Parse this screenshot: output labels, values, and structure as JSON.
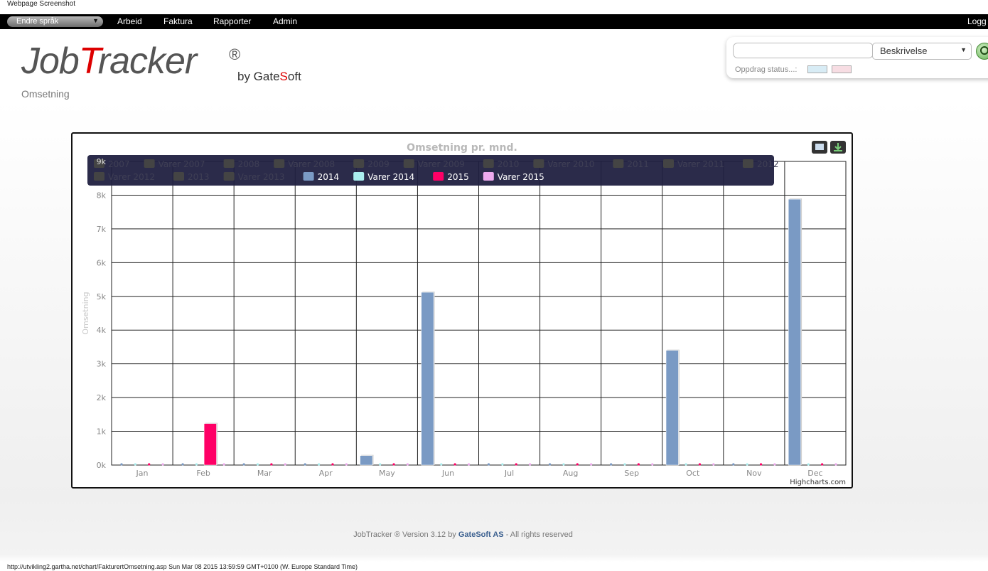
{
  "page": {
    "caption": "Webpage Screenshot",
    "status_url": "http://utvikling2.gartha.net/chart/FakturertOmsetning.asp Sun Mar 08 2015 13:59:59 GMT+0100 (W. Europe Standard Time)"
  },
  "nav": {
    "language": "Endre språk",
    "items": [
      "Arbeid",
      "Faktura",
      "Rapporter",
      "Admin"
    ],
    "logout": "Logg ut"
  },
  "logo": {
    "part1": "Job",
    "part2": "T",
    "part3": "racker",
    "reg": "®",
    "by": "by Gate",
    "by_s": "S",
    "by_rest": "oft",
    "subtitle": "Omsetning"
  },
  "search": {
    "value": "",
    "select_value": "Beskrivelse",
    "status_label": "Oppdrag status...:",
    "swatches": [
      "#d8ecf5",
      "#f7dde3"
    ]
  },
  "chart_data": {
    "type": "bar",
    "title": "Omsetning pr. mnd.",
    "ylabel": "Omsetning",
    "credit": "Highcharts.com",
    "categories": [
      "Jan",
      "Feb",
      "Mar",
      "Apr",
      "May",
      "Jun",
      "Jul",
      "Aug",
      "Sep",
      "Oct",
      "Nov",
      "Dec"
    ],
    "ylim": [
      0,
      9000
    ],
    "yticks": [
      "0k",
      "1k",
      "2k",
      "3k",
      "4k",
      "5k",
      "6k",
      "7k",
      "8k",
      "9k"
    ],
    "grid": true,
    "legend_placement": "top",
    "legend": [
      {
        "name": "2007",
        "visible": false
      },
      {
        "name": "Varer 2007",
        "visible": false
      },
      {
        "name": "2008",
        "visible": false
      },
      {
        "name": "Varer 2008",
        "visible": false
      },
      {
        "name": "2009",
        "visible": false
      },
      {
        "name": "Varer 2009",
        "visible": false
      },
      {
        "name": "2010",
        "visible": false
      },
      {
        "name": "Varer 2010",
        "visible": false
      },
      {
        "name": "2011",
        "visible": false
      },
      {
        "name": "Varer 2011",
        "visible": false
      },
      {
        "name": "2012",
        "visible": false
      },
      {
        "name": "Varer 2012",
        "visible": false
      },
      {
        "name": "2013",
        "visible": false
      },
      {
        "name": "Varer 2013",
        "visible": false
      },
      {
        "name": "2014",
        "visible": true,
        "color": "#7a9ac4"
      },
      {
        "name": "Varer 2014",
        "visible": true,
        "color": "#aaeeee"
      },
      {
        "name": "2015",
        "visible": true,
        "color": "#ff0066"
      },
      {
        "name": "Varer 2015",
        "visible": true,
        "color": "#eeaaee"
      }
    ],
    "series": [
      {
        "name": "2014",
        "color": "#7a9ac4",
        "values": [
          0,
          0,
          0,
          0,
          280,
          5120,
          0,
          0,
          0,
          3400,
          0,
          7880
        ]
      },
      {
        "name": "Varer 2014",
        "color": "#aaeeee",
        "values": [
          0,
          0,
          0,
          0,
          0,
          0,
          0,
          0,
          0,
          0,
          0,
          0
        ]
      },
      {
        "name": "2015",
        "color": "#ff0066",
        "values": [
          0,
          1230,
          0,
          0,
          0,
          0,
          0,
          0,
          0,
          0,
          0,
          0
        ]
      },
      {
        "name": "Varer 2015",
        "color": "#eeaaee",
        "values": [
          0,
          0,
          0,
          0,
          0,
          0,
          0,
          0,
          0,
          0,
          0,
          0
        ]
      }
    ]
  },
  "footer": {
    "prefix": "JobTracker ® Version 3.12 by ",
    "brand": "GateSoft AS",
    "suffix": " - All rights reserved"
  }
}
